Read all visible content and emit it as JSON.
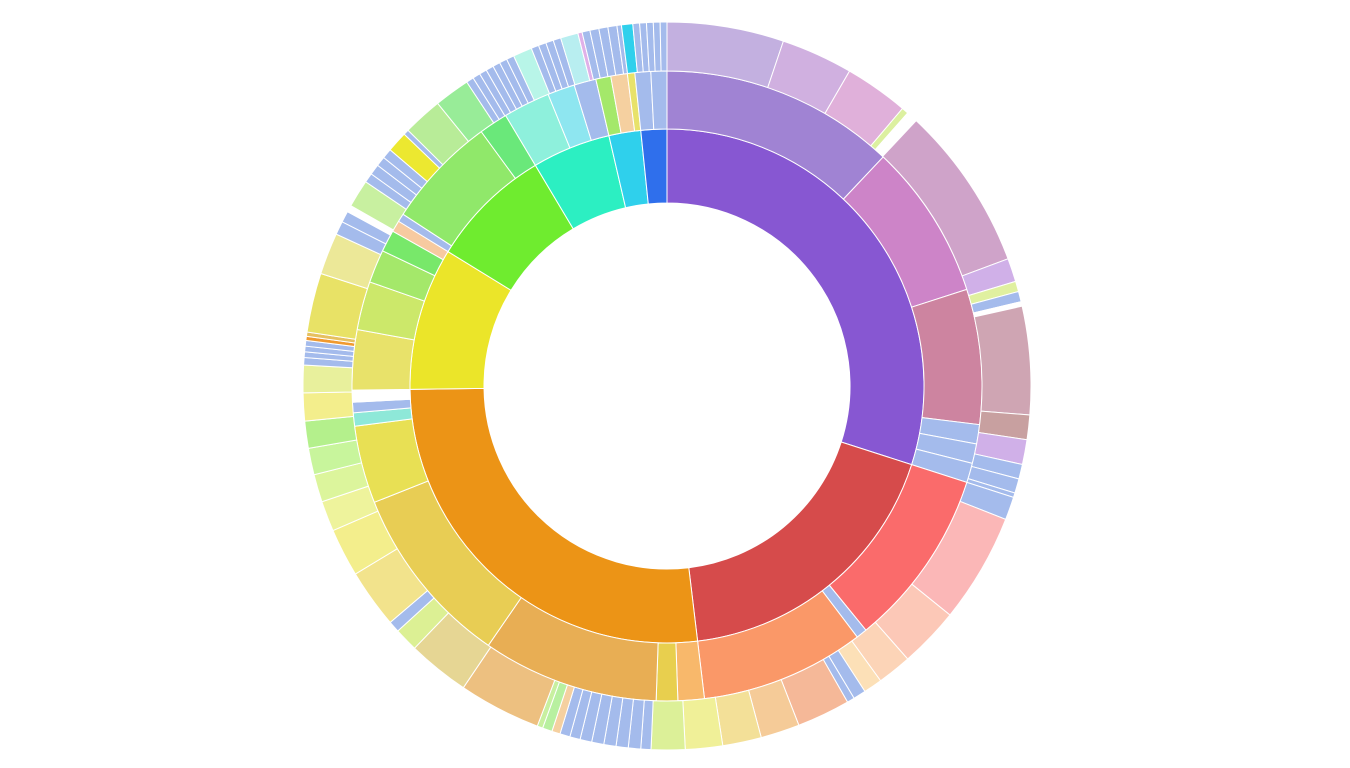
{
  "chart_data": {
    "type": "sunburst",
    "title": "",
    "rings": [
      {
        "level": 1,
        "segments": [
          {
            "start": 0.0,
            "end": 0.2995,
            "color": "#8757d2"
          },
          {
            "start": 0.2995,
            "end": 0.481,
            "color": "#d64b4b"
          },
          {
            "start": 0.481,
            "end": 0.7479,
            "color": "#ec9416"
          },
          {
            "start": 0.7479,
            "end": 0.8376,
            "color": "#ebe529"
          },
          {
            "start": 0.8376,
            "end": 0.9144,
            "color": "#6fec2f"
          },
          {
            "start": 0.9144,
            "end": 0.9637,
            "color": "#2cefc2"
          },
          {
            "start": 0.9637,
            "end": 0.9837,
            "color": "#2fd0ec"
          },
          {
            "start": 0.9837,
            "end": 1.0,
            "color": "#2f6fec"
          }
        ]
      },
      {
        "level": 2,
        "segments": [
          {
            "start": 0.0,
            "end": 0.1204,
            "color": "#a083d3"
          },
          {
            "start": 0.1204,
            "end": 0.2004,
            "color": "#cd84c8"
          },
          {
            "start": 0.2004,
            "end": 0.2696,
            "color": "#cd84a0"
          },
          {
            "start": 0.2696,
            "end": 0.2795,
            "color": "#a4bbec"
          },
          {
            "start": 0.2795,
            "end": 0.2895,
            "color": "#a4bbec"
          },
          {
            "start": 0.2895,
            "end": 0.2995,
            "color": "#a4bbec"
          },
          {
            "start": 0.2995,
            "end": 0.3912,
            "color": "#fa6b6b"
          },
          {
            "start": 0.3912,
            "end": 0.3968,
            "color": "#a4bbec"
          },
          {
            "start": 0.3968,
            "end": 0.481,
            "color": "#fa9868"
          },
          {
            "start": 0.481,
            "end": 0.4945,
            "color": "#f8b86b"
          },
          {
            "start": 0.4945,
            "end": 0.5055,
            "color": "#e8cf4e"
          },
          {
            "start": 0.5055,
            "end": 0.596,
            "color": "#e8ae54"
          },
          {
            "start": 0.596,
            "end": 0.6898,
            "color": "#e8cd54"
          },
          {
            "start": 0.6898,
            "end": 0.7296,
            "color": "#e8e054"
          },
          {
            "start": 0.7296,
            "end": 0.7364,
            "color": "#8ee8d8"
          },
          {
            "start": 0.7364,
            "end": 0.7418,
            "color": "#a4bbec"
          },
          {
            "start": 0.7418,
            "end": 0.7479,
            "color": "#ffffff"
          },
          {
            "start": 0.7479,
            "end": 0.7787,
            "color": "#e8e26a"
          },
          {
            "start": 0.7787,
            "end": 0.8036,
            "color": "#cce86a"
          },
          {
            "start": 0.8036,
            "end": 0.8206,
            "color": "#a4e86a"
          },
          {
            "start": 0.8206,
            "end": 0.8318,
            "color": "#78e86a"
          },
          {
            "start": 0.8318,
            "end": 0.8376,
            "color": "#f7caa0"
          },
          {
            "start": 0.8376,
            "end": 0.8418,
            "color": "#a4bbec"
          },
          {
            "start": 0.8418,
            "end": 0.8996,
            "color": "#90e86a"
          },
          {
            "start": 0.8996,
            "end": 0.9144,
            "color": "#6ae87a"
          },
          {
            "start": 0.9144,
            "end": 0.9384,
            "color": "#8ef0dc"
          },
          {
            "start": 0.9384,
            "end": 0.9524,
            "color": "#8ee6f0"
          },
          {
            "start": 0.9524,
            "end": 0.9637,
            "color": "#a4bbec"
          },
          {
            "start": 0.9637,
            "end": 0.9714,
            "color": "#a4e86a"
          },
          {
            "start": 0.9714,
            "end": 0.9799,
            "color": "#f5d0a0"
          },
          {
            "start": 0.9799,
            "end": 0.9837,
            "color": "#e8e26a"
          },
          {
            "start": 0.9837,
            "end": 0.9918,
            "color": "#a4bbec"
          },
          {
            "start": 0.9918,
            "end": 1.0,
            "color": "#a4bbec"
          }
        ]
      },
      {
        "level": 3,
        "segments": [
          {
            "start": 0.0,
            "end": 0.0518,
            "color": "#c3b0e0"
          },
          {
            "start": 0.0518,
            "end": 0.0836,
            "color": "#d0b0e0"
          },
          {
            "start": 0.0836,
            "end": 0.112,
            "color": "#e0b0da"
          },
          {
            "start": 0.112,
            "end": 0.115,
            "color": "#dcf0a0"
          },
          {
            "start": 0.115,
            "end": 0.12,
            "color": "#ffffff"
          },
          {
            "start": 0.12,
            "end": 0.1932,
            "color": "#cfa3c9"
          },
          {
            "start": 0.1932,
            "end": 0.2036,
            "color": "#d0b0e8"
          },
          {
            "start": 0.2036,
            "end": 0.2082,
            "color": "#e0f0a0"
          },
          {
            "start": 0.2082,
            "end": 0.2128,
            "color": "#a4bbec"
          },
          {
            "start": 0.2128,
            "end": 0.2148,
            "color": "#ffffff"
          },
          {
            "start": 0.2148,
            "end": 0.2627,
            "color": "#cfa5b3"
          },
          {
            "start": 0.2627,
            "end": 0.2736,
            "color": "#c8a0a0"
          },
          {
            "start": 0.2736,
            "end": 0.2846,
            "color": "#d0b0e8"
          },
          {
            "start": 0.2846,
            "end": 0.2911,
            "color": "#a4bbec"
          },
          {
            "start": 0.2911,
            "end": 0.2975,
            "color": "#a4bbec"
          },
          {
            "start": 0.2975,
            "end": 0.2995,
            "color": "#a4bbec"
          },
          {
            "start": 0.2995,
            "end": 0.3097,
            "color": "#a4bbec"
          },
          {
            "start": 0.3097,
            "end": 0.3583,
            "color": "#fbb7b7"
          },
          {
            "start": 0.3583,
            "end": 0.385,
            "color": "#fcc8b7"
          },
          {
            "start": 0.385,
            "end": 0.4002,
            "color": "#fcd4b7"
          },
          {
            "start": 0.4002,
            "end": 0.4085,
            "color": "#fce0b7"
          },
          {
            "start": 0.4085,
            "end": 0.4141,
            "color": "#a4bbec"
          },
          {
            "start": 0.4141,
            "end": 0.4174,
            "color": "#a4bbec"
          },
          {
            "start": 0.4174,
            "end": 0.441,
            "color": "#f5b898"
          },
          {
            "start": 0.441,
            "end": 0.4583,
            "color": "#f5cb98"
          },
          {
            "start": 0.4583,
            "end": 0.4755,
            "color": "#f3e098"
          },
          {
            "start": 0.4755,
            "end": 0.492,
            "color": "#f0f098"
          },
          {
            "start": 0.492,
            "end": 0.507,
            "color": "#dcf098"
          },
          {
            "start": 0.507,
            "end": 0.5115,
            "color": "#a4bbec"
          },
          {
            "start": 0.5115,
            "end": 0.517,
            "color": "#a4bbec"
          },
          {
            "start": 0.517,
            "end": 0.5224,
            "color": "#a4bbec"
          },
          {
            "start": 0.5224,
            "end": 0.5278,
            "color": "#a4bbec"
          },
          {
            "start": 0.5278,
            "end": 0.5332,
            "color": "#a4bbec"
          },
          {
            "start": 0.5332,
            "end": 0.5384,
            "color": "#a4bbec"
          },
          {
            "start": 0.5384,
            "end": 0.543,
            "color": "#a4bbec"
          },
          {
            "start": 0.543,
            "end": 0.5475,
            "color": "#a4bbec"
          },
          {
            "start": 0.5475,
            "end": 0.5512,
            "color": "#f5d0a0"
          },
          {
            "start": 0.5512,
            "end": 0.5555,
            "color": "#b8f0a0"
          },
          {
            "start": 0.5555,
            "end": 0.558,
            "color": "#c8f0a0"
          },
          {
            "start": 0.558,
            "end": 0.5945,
            "color": "#edc080"
          },
          {
            "start": 0.5945,
            "end": 0.622,
            "color": "#e6d694"
          },
          {
            "start": 0.622,
            "end": 0.6325,
            "color": "#dcf094"
          },
          {
            "start": 0.6325,
            "end": 0.6375,
            "color": "#a4bbec"
          },
          {
            "start": 0.6375,
            "end": 0.6636,
            "color": "#f2e38c"
          },
          {
            "start": 0.6636,
            "end": 0.685,
            "color": "#f3ee8c"
          },
          {
            "start": 0.685,
            "end": 0.6985,
            "color": "#eef39c"
          },
          {
            "start": 0.6985,
            "end": 0.7108,
            "color": "#dcf59c"
          },
          {
            "start": 0.7108,
            "end": 0.7226,
            "color": "#c8f59c"
          },
          {
            "start": 0.7226,
            "end": 0.7346,
            "color": "#b4f08c"
          },
          {
            "start": 0.7346,
            "end": 0.747,
            "color": "#f3ee8c"
          },
          {
            "start": 0.747,
            "end": 0.7592,
            "color": "#e8f09c"
          },
          {
            "start": 0.7592,
            "end": 0.7625,
            "color": "#a4bbec"
          },
          {
            "start": 0.7625,
            "end": 0.765,
            "color": "#a4bbec"
          },
          {
            "start": 0.765,
            "end": 0.7675,
            "color": "#a4bbec"
          },
          {
            "start": 0.7675,
            "end": 0.77,
            "color": "#a4bbec"
          },
          {
            "start": 0.77,
            "end": 0.7718,
            "color": "#f09a30"
          },
          {
            "start": 0.7718,
            "end": 0.7737,
            "color": "#e6c060"
          },
          {
            "start": 0.7737,
            "end": 0.8,
            "color": "#e8e266"
          },
          {
            "start": 0.8,
            "end": 0.8185,
            "color": "#ece898"
          },
          {
            "start": 0.8185,
            "end": 0.8245,
            "color": "#a4bbec"
          },
          {
            "start": 0.8245,
            "end": 0.8295,
            "color": "#a4bbec"
          },
          {
            "start": 0.8295,
            "end": 0.8325,
            "color": "#ffffff"
          },
          {
            "start": 0.8325,
            "end": 0.8448,
            "color": "#c8f0a0"
          },
          {
            "start": 0.8448,
            "end": 0.849,
            "color": "#a4bbec"
          },
          {
            "start": 0.849,
            "end": 0.8537,
            "color": "#a4bbec"
          },
          {
            "start": 0.8537,
            "end": 0.858,
            "color": "#a4bbec"
          },
          {
            "start": 0.858,
            "end": 0.8624,
            "color": "#a4bbec"
          },
          {
            "start": 0.8624,
            "end": 0.8716,
            "color": "#ece830"
          },
          {
            "start": 0.8716,
            "end": 0.874,
            "color": "#a4bbec"
          },
          {
            "start": 0.874,
            "end": 0.8915,
            "color": "#b8ec98"
          },
          {
            "start": 0.8915,
            "end": 0.9073,
            "color": "#98ec98"
          },
          {
            "start": 0.9073,
            "end": 0.9106,
            "color": "#a4bbec"
          },
          {
            "start": 0.9106,
            "end": 0.914,
            "color": "#a4bbec"
          },
          {
            "start": 0.914,
            "end": 0.9173,
            "color": "#a4bbec"
          },
          {
            "start": 0.9173,
            "end": 0.9207,
            "color": "#a4bbec"
          },
          {
            "start": 0.9207,
            "end": 0.924,
            "color": "#a4bbec"
          },
          {
            "start": 0.924,
            "end": 0.9274,
            "color": "#a4bbec"
          },
          {
            "start": 0.9274,
            "end": 0.9308,
            "color": "#a4bbec"
          },
          {
            "start": 0.9308,
            "end": 0.9392,
            "color": "#b8f5e8"
          },
          {
            "start": 0.9392,
            "end": 0.9426,
            "color": "#a4bbec"
          },
          {
            "start": 0.9426,
            "end": 0.946,
            "color": "#a4bbec"
          },
          {
            "start": 0.946,
            "end": 0.9494,
            "color": "#a4bbec"
          },
          {
            "start": 0.9494,
            "end": 0.9528,
            "color": "#a4bbec"
          },
          {
            "start": 0.9528,
            "end": 0.9606,
            "color": "#b8eef0"
          },
          {
            "start": 0.9606,
            "end": 0.9625,
            "color": "#e0b0e8"
          },
          {
            "start": 0.9625,
            "end": 0.966,
            "color": "#a4bbec"
          },
          {
            "start": 0.966,
            "end": 0.97,
            "color": "#a4bbec"
          },
          {
            "start": 0.97,
            "end": 0.974,
            "color": "#a4bbec"
          },
          {
            "start": 0.974,
            "end": 0.978,
            "color": "#a4bbec"
          },
          {
            "start": 0.978,
            "end": 0.98,
            "color": "#a4bbec"
          },
          {
            "start": 0.98,
            "end": 0.985,
            "color": "#2fd0ec"
          },
          {
            "start": 0.985,
            "end": 0.988,
            "color": "#a4bbec"
          },
          {
            "start": 0.988,
            "end": 0.991,
            "color": "#a4bbec"
          },
          {
            "start": 0.991,
            "end": 0.994,
            "color": "#a4bbec"
          },
          {
            "start": 0.994,
            "end": 0.997,
            "color": "#a4bbec"
          },
          {
            "start": 0.997,
            "end": 1.0,
            "color": "#a4bbec"
          }
        ]
      }
    ]
  }
}
